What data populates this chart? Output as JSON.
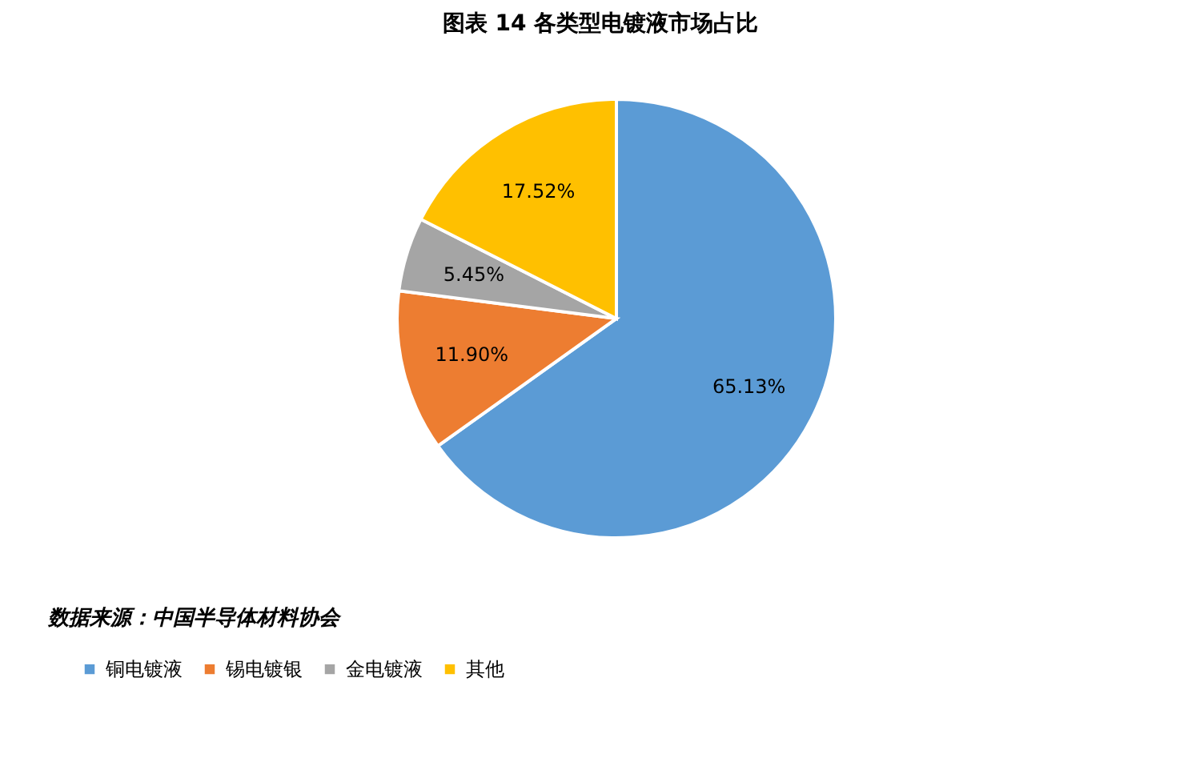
{
  "chart_data": {
    "type": "pie",
    "title": "图表 14 各类型电镀液市场占比",
    "categories": [
      "铜电镀液",
      "锡电镀银",
      "金电镀液",
      "其他"
    ],
    "values": [
      65.13,
      11.9,
      5.45,
      17.52
    ],
    "colors": [
      "#5b9bd5",
      "#ed7d31",
      "#a5a5a5",
      "#ffc000"
    ],
    "value_labels": [
      "65.13%",
      "11.90%",
      "5.45%",
      "17.52%"
    ],
    "legend": "bottom",
    "annotations": [
      "数据来源：中国半导体材料协会"
    ]
  }
}
